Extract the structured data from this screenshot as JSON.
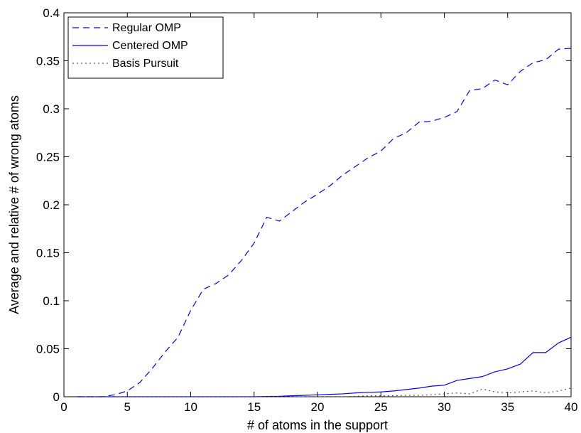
{
  "chart_data": {
    "type": "line",
    "title": "",
    "xlabel": "# of atoms in the support",
    "ylabel": "Average and relative # of wrong atoms",
    "xlim": [
      0,
      40
    ],
    "ylim": [
      0,
      0.4
    ],
    "xticks": [
      0,
      5,
      10,
      15,
      20,
      25,
      30,
      35,
      40
    ],
    "yticks": [
      0,
      0.05,
      0.1,
      0.15,
      0.2,
      0.25,
      0.3,
      0.35,
      0.4
    ],
    "xtick_labels": [
      "0",
      "5",
      "10",
      "15",
      "20",
      "25",
      "30",
      "35",
      "40"
    ],
    "ytick_labels": [
      "0",
      "0.05",
      "0.1",
      "0.15",
      "0.2",
      "0.25",
      "0.3",
      "0.35",
      "0.4"
    ],
    "grid": false,
    "legend_position": "top-left",
    "x": [
      1,
      2,
      3,
      4,
      5,
      6,
      7,
      8,
      9,
      10,
      11,
      12,
      13,
      14,
      15,
      16,
      17,
      18,
      19,
      20,
      21,
      22,
      23,
      24,
      25,
      26,
      27,
      28,
      29,
      30,
      31,
      32,
      33,
      34,
      35,
      36,
      37,
      38,
      39,
      40
    ],
    "series": [
      {
        "name": "Regular OMP",
        "style": "dashed",
        "color": "#0000ff",
        "values": [
          0,
          0,
          0,
          0.002,
          0.006,
          0.015,
          0.03,
          0.047,
          0.062,
          0.09,
          0.112,
          0.118,
          0.127,
          0.142,
          0.16,
          0.187,
          0.183,
          0.193,
          0.203,
          0.211,
          0.22,
          0.231,
          0.24,
          0.249,
          0.256,
          0.269,
          0.275,
          0.286,
          0.287,
          0.291,
          0.297,
          0.319,
          0.321,
          0.33,
          0.325,
          0.339,
          0.348,
          0.351,
          0.362,
          0.363
        ]
      },
      {
        "name": "Centered OMP",
        "style": "solid",
        "color": "#0000ff",
        "values": [
          0,
          0,
          0,
          0,
          0,
          0,
          0,
          0,
          0,
          0,
          0,
          0,
          0,
          0,
          0,
          0.0003,
          0.0005,
          0.001,
          0.0015,
          0.002,
          0.0025,
          0.003,
          0.004,
          0.0045,
          0.005,
          0.006,
          0.0075,
          0.009,
          0.011,
          0.012,
          0.017,
          0.019,
          0.021,
          0.026,
          0.029,
          0.034,
          0.046,
          0.046,
          0.056,
          0.062
        ]
      },
      {
        "name": "Basis Pursuit",
        "style": "dotted",
        "color": "#555555",
        "values": [
          0,
          0,
          0,
          0,
          0,
          0,
          0,
          0,
          0,
          0,
          0,
          0,
          0,
          0,
          0,
          0,
          0,
          0,
          0,
          0,
          0,
          0,
          0.0005,
          0.001,
          0.001,
          0.001,
          0.0015,
          0.0015,
          0.002,
          0.003,
          0.004,
          0.003,
          0.008,
          0.005,
          0.004,
          0.005,
          0.006,
          0.004,
          0.006,
          0.009
        ]
      }
    ]
  }
}
